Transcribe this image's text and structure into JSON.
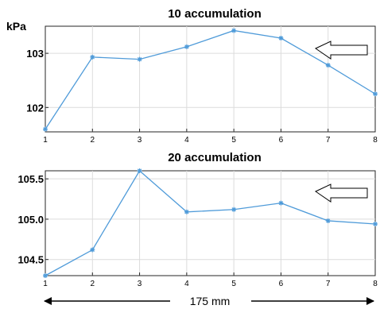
{
  "chart_data": [
    {
      "type": "line",
      "title": "10 accumulation",
      "ylabel": "kPa",
      "x": [
        1,
        2,
        3,
        4,
        5,
        6,
        7,
        8
      ],
      "xlim": [
        1,
        8
      ],
      "ylim": [
        101.55,
        103.5
      ],
      "yticks": [
        "103",
        "102"
      ],
      "ytick_values": [
        103,
        102
      ],
      "grid": true,
      "series": [
        {
          "values": [
            101.6,
            102.93,
            102.89,
            103.12,
            103.42,
            103.28,
            102.78,
            102.25
          ]
        }
      ],
      "annotation": "arrow pointing left",
      "color": "#4f9bd9"
    },
    {
      "type": "line",
      "title": "20 accumulation",
      "ylabel": "",
      "x": [
        1,
        2,
        3,
        4,
        5,
        6,
        7,
        8
      ],
      "xlim": [
        1,
        8
      ],
      "ylim": [
        104.3,
        105.6
      ],
      "yticks": [
        "105.5",
        "105.0",
        "104.5"
      ],
      "ytick_values": [
        105.5,
        105.0,
        104.5
      ],
      "grid": true,
      "series": [
        {
          "values": [
            104.3,
            104.62,
            105.6,
            105.09,
            105.12,
            105.2,
            104.98,
            104.94
          ]
        }
      ],
      "annotation": "arrow pointing left",
      "color": "#4f9bd9"
    }
  ],
  "distance_label": "175 mm"
}
